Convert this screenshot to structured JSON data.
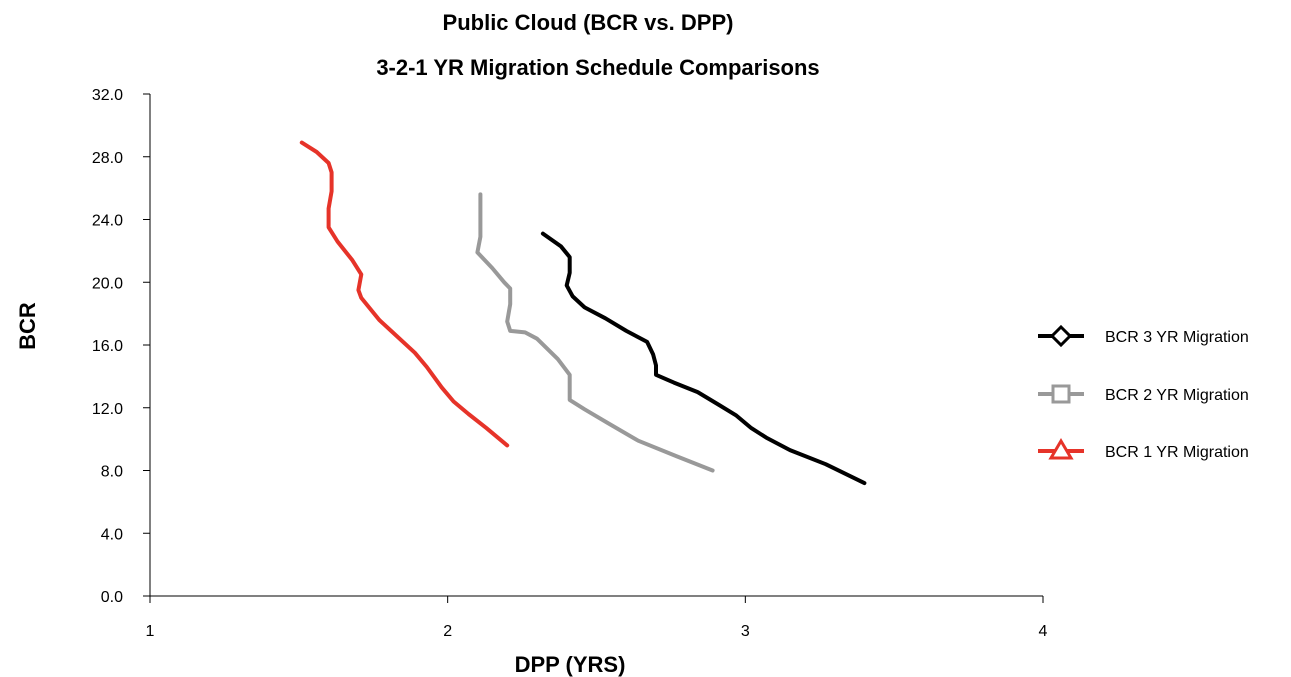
{
  "chart_data": {
    "type": "line",
    "title_lines": [
      "Public Cloud (BCR vs. DPP)",
      "3-2-1 YR Migration Schedule Comparisons"
    ],
    "xlabel": "DPP (YRS)",
    "ylabel": "BCR",
    "xlim": [
      1,
      4
    ],
    "ylim": [
      0,
      32
    ],
    "x_ticks": [
      "1",
      "2",
      "3",
      "4"
    ],
    "y_ticks": [
      "0.0",
      "4.0",
      "8.0",
      "12.0",
      "16.0",
      "20.0",
      "24.0",
      "28.0",
      "32.0"
    ],
    "grid": false,
    "legend_position": "right",
    "series": [
      {
        "name": "BCR 3 YR Migration",
        "color": "#000000",
        "marker": "diamond",
        "points": [
          [
            2.32,
            23.1
          ],
          [
            2.38,
            22.3
          ],
          [
            2.41,
            21.6
          ],
          [
            2.41,
            20.6
          ],
          [
            2.4,
            19.8
          ],
          [
            2.42,
            19.1
          ],
          [
            2.46,
            18.4
          ],
          [
            2.53,
            17.7
          ],
          [
            2.6,
            16.9
          ],
          [
            2.67,
            16.2
          ],
          [
            2.69,
            15.4
          ],
          [
            2.7,
            14.7
          ],
          [
            2.7,
            14.1
          ],
          [
            2.76,
            13.6
          ],
          [
            2.84,
            13.0
          ],
          [
            2.91,
            12.2
          ],
          [
            2.97,
            11.5
          ],
          [
            3.02,
            10.7
          ],
          [
            3.07,
            10.1
          ],
          [
            3.15,
            9.3
          ],
          [
            3.27,
            8.4
          ],
          [
            3.4,
            7.2
          ]
        ]
      },
      {
        "name": "BCR 2 YR Migration",
        "color": "#999999",
        "marker": "square",
        "points": [
          [
            2.11,
            25.6
          ],
          [
            2.11,
            24.0
          ],
          [
            2.11,
            22.9
          ],
          [
            2.1,
            21.9
          ],
          [
            2.15,
            20.9
          ],
          [
            2.19,
            20.0
          ],
          [
            2.21,
            19.6
          ],
          [
            2.21,
            18.6
          ],
          [
            2.2,
            17.5
          ],
          [
            2.21,
            16.9
          ],
          [
            2.26,
            16.8
          ],
          [
            2.3,
            16.4
          ],
          [
            2.37,
            15.1
          ],
          [
            2.41,
            14.1
          ],
          [
            2.41,
            13.1
          ],
          [
            2.41,
            12.5
          ],
          [
            2.46,
            11.9
          ],
          [
            2.54,
            11.0
          ],
          [
            2.64,
            9.9
          ],
          [
            2.77,
            8.9
          ],
          [
            2.89,
            8.0
          ]
        ]
      },
      {
        "name": "BCR 1 YR Migration",
        "color": "#e63329",
        "marker": "triangle",
        "points": [
          [
            1.51,
            28.9
          ],
          [
            1.56,
            28.3
          ],
          [
            1.6,
            27.6
          ],
          [
            1.61,
            27.0
          ],
          [
            1.61,
            25.8
          ],
          [
            1.6,
            24.7
          ],
          [
            1.6,
            23.5
          ],
          [
            1.63,
            22.6
          ],
          [
            1.68,
            21.4
          ],
          [
            1.71,
            20.5
          ],
          [
            1.7,
            19.5
          ],
          [
            1.71,
            19.0
          ],
          [
            1.77,
            17.6
          ],
          [
            1.81,
            16.9
          ],
          [
            1.89,
            15.5
          ],
          [
            1.93,
            14.6
          ],
          [
            1.98,
            13.3
          ],
          [
            2.02,
            12.4
          ],
          [
            2.07,
            11.6
          ],
          [
            2.13,
            10.7
          ],
          [
            2.2,
            9.6
          ]
        ]
      }
    ]
  }
}
